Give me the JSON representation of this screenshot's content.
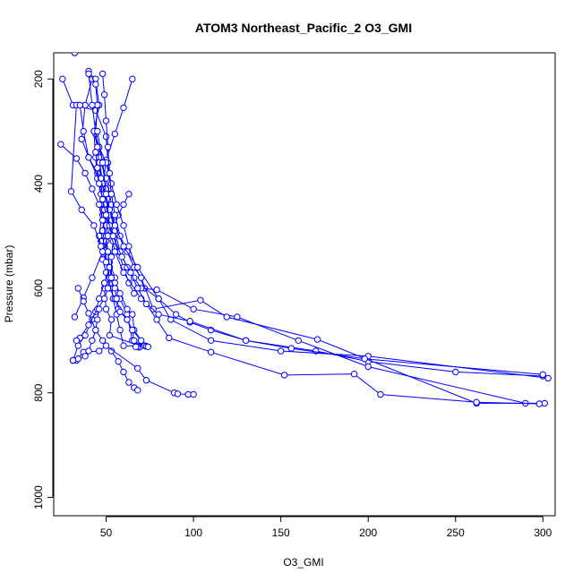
{
  "chart_data": {
    "type": "line",
    "title": "ATOM3 Northeast_Pacific_2 O3_GMI",
    "xlabel": "O3_GMI",
    "ylabel": "Pressure (mbar)",
    "xlim": [
      20,
      307
    ],
    "ylim": [
      1035,
      150
    ],
    "y_reversed": true,
    "x_ticks": [
      50,
      100,
      150,
      200,
      250,
      300
    ],
    "y_ticks": [
      200,
      400,
      600,
      800,
      1000
    ],
    "grid": false,
    "line_color": "#0000ff",
    "marker": "open-circle",
    "series": [
      {
        "x": [
          25,
          31,
          44,
          50,
          51,
          53,
          49,
          48,
          47,
          51,
          49,
          50,
          53,
          52,
          69,
          69,
          69
        ],
        "y": [
          200,
          250,
          260,
          310,
          360,
          420,
          460,
          490,
          510,
          550,
          600,
          640,
          660,
          690,
          710,
          712,
          713
        ]
      },
      {
        "x": [
          42,
          38,
          36,
          40,
          45,
          48,
          50,
          49,
          51,
          55,
          58,
          62,
          65,
          68,
          68
        ],
        "y": [
          200,
          250,
          315,
          350,
          380,
          420,
          460,
          500,
          540,
          580,
          620,
          650,
          700,
          710,
          712
        ]
      },
      {
        "x": [
          44,
          46,
          43,
          44,
          45,
          47,
          48,
          50,
          52,
          53,
          54,
          56,
          58,
          60,
          73
        ],
        "y": [
          200,
          250,
          300,
          350,
          390,
          420,
          460,
          510,
          550,
          590,
          620,
          650,
          680,
          710,
          711
        ]
      },
      {
        "x": [
          65,
          60,
          55,
          50,
          48,
          49,
          50,
          48,
          52,
          55,
          58,
          62,
          65,
          66,
          72,
          73
        ],
        "y": [
          200,
          255,
          305,
          355,
          410,
          440,
          480,
          520,
          560,
          590,
          610,
          640,
          650,
          680,
          710,
          711
        ]
      },
      {
        "x": [
          40,
          44,
          45,
          44,
          48,
          50,
          48,
          46,
          48,
          50,
          52,
          55,
          57,
          62,
          65,
          66,
          67
        ],
        "y": [
          185,
          210,
          250,
          305,
          360,
          410,
          450,
          500,
          545,
          570,
          600,
          620,
          640,
          660,
          680,
          700,
          712
        ]
      },
      {
        "x": [
          33,
          30,
          36,
          43,
          47,
          50,
          52,
          55,
          56,
          58,
          62,
          65,
          70,
          74
        ],
        "y": [
          250,
          415,
          450,
          480,
          520,
          550,
          580,
          600,
          620,
          645,
          660,
          680,
          700,
          712
        ]
      },
      {
        "x": [
          35,
          37,
          40,
          47,
          49,
          52,
          57,
          60,
          63,
          66
        ],
        "y": [
          250,
          300,
          350,
          400,
          450,
          490,
          530,
          560,
          590,
          610
        ]
      },
      {
        "x": [
          24,
          33,
          38,
          42,
          46,
          48,
          50,
          51,
          52,
          49,
          46,
          44,
          42,
          38,
          34,
          31
        ],
        "y": [
          325,
          352,
          380,
          410,
          440,
          470,
          500,
          530,
          560,
          590,
          620,
          645,
          660,
          690,
          710,
          738
        ]
      },
      {
        "x": [
          45,
          47,
          50,
          52,
          53,
          53,
          51,
          48,
          42,
          37,
          32
        ],
        "y": [
          335,
          360,
          390,
          420,
          440,
          470,
          500,
          530,
          580,
          618,
          655
        ]
      },
      {
        "x": [
          63,
          60,
          57,
          55,
          54,
          53,
          53,
          51,
          49,
          45,
          40,
          35,
          33
        ],
        "y": [
          420,
          440,
          460,
          480,
          510,
          540,
          580,
          600,
          620,
          640,
          670,
          695,
          700
        ]
      },
      {
        "x": [
          46,
          50,
          53,
          56,
          60,
          63,
          67,
          72,
          80,
          90,
          98,
          110,
          130,
          170,
          200,
          250,
          300
        ],
        "y": [
          330,
          360,
          400,
          440,
          480,
          520,
          560,
          600,
          620,
          650,
          665,
          680,
          700,
          720,
          740,
          760,
          768
        ]
      },
      {
        "x": [
          40,
          42,
          44,
          46,
          48,
          52,
          55,
          58,
          62,
          66,
          70,
          79,
          100,
          125,
          160,
          200,
          290
        ],
        "y": [
          190,
          250,
          300,
          350,
          400,
          450,
          490,
          530,
          560,
          580,
          600,
          603,
          640,
          655,
          700,
          750,
          820
        ]
      },
      {
        "x": [
          48,
          49,
          50,
          51,
          52,
          53,
          55,
          58,
          62,
          66,
          70,
          77,
          104,
          119,
          171,
          262,
          301
        ],
        "y": [
          190,
          230,
          280,
          330,
          380,
          420,
          460,
          500,
          530,
          560,
          580,
          640,
          623,
          655,
          698,
          820,
          820
        ]
      },
      {
        "x": [
          43,
          45,
          46,
          47,
          49,
          52,
          55,
          60,
          68,
          80,
          87,
          110,
          150,
          200,
          303
        ],
        "y": [
          300,
          330,
          360,
          390,
          420,
          450,
          480,
          520,
          560,
          620,
          660,
          700,
          720,
          730,
          772
        ]
      },
      {
        "x": [
          45,
          48,
          50,
          52,
          55,
          60,
          70,
          80,
          98,
          130,
          156,
          198,
          300
        ],
        "y": [
          300,
          360,
          420,
          480,
          530,
          570,
          620,
          650,
          663,
          700,
          715,
          735,
          765
        ]
      },
      {
        "x": [
          44,
          45,
          46,
          48,
          50,
          54,
          59,
          64,
          68,
          73,
          79,
          86,
          110,
          152,
          192,
          207,
          262,
          298
        ],
        "y": [
          340,
          370,
          400,
          430,
          460,
          500,
          540,
          570,
          600,
          630,
          660,
          695,
          722,
          766,
          764,
          803,
          818,
          821
        ]
      },
      {
        "x": [
          32,
          32
        ],
        "y": [
          150,
          150
        ]
      },
      {
        "x": [
          34,
          37,
          40,
          44,
          48,
          53,
          57,
          60,
          63,
          66,
          68
        ],
        "y": [
          600,
          625,
          648,
          680,
          700,
          720,
          740,
          760,
          780,
          790,
          795
        ]
      },
      {
        "x": [
          33,
          37,
          46,
          50,
          68,
          73,
          89,
          91,
          97,
          100
        ],
        "y": [
          738,
          722,
          720,
          710,
          753,
          776,
          800,
          802,
          803,
          803
        ]
      },
      {
        "x": [
          31,
          34,
          38,
          40,
          42,
          44,
          45,
          46
        ],
        "y": [
          738,
          735,
          730,
          720,
          700,
          680,
          660,
          640
        ]
      }
    ]
  }
}
